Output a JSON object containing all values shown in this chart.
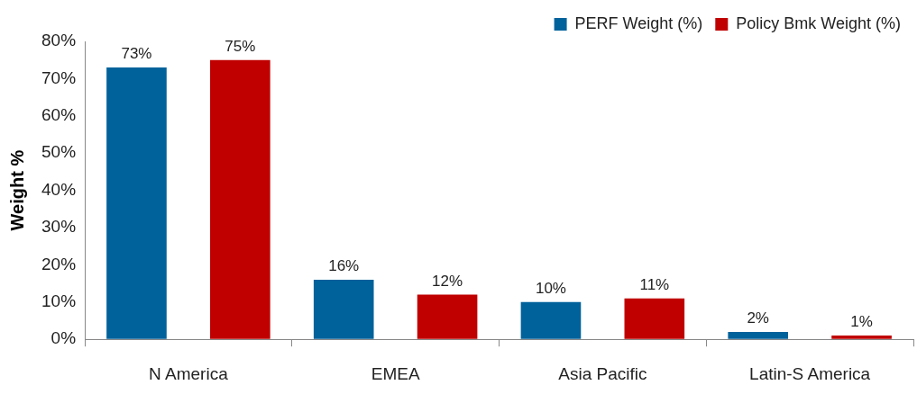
{
  "chart_data": {
    "type": "bar",
    "ylabel": "Weight %",
    "categories": [
      "N America",
      "EMEA",
      "Asia Pacific",
      "Latin-S America"
    ],
    "series": [
      {
        "name": "PERF Weight (%)",
        "color": "#00629b",
        "values": [
          73,
          16,
          10,
          2
        ],
        "value_labels": [
          "73%",
          "16%",
          "10%",
          "2%"
        ]
      },
      {
        "name": "Policy Bmk Weight (%)",
        "color": "#c00000",
        "values": [
          75,
          12,
          11,
          1
        ],
        "value_labels": [
          "75%",
          "12%",
          "11%",
          "1%"
        ]
      }
    ],
    "ylim": [
      0,
      80
    ],
    "yticks": [
      {
        "value": 0,
        "label": "0%"
      },
      {
        "value": 10,
        "label": "10%"
      },
      {
        "value": 20,
        "label": "20%"
      },
      {
        "value": 30,
        "label": "30%"
      },
      {
        "value": 40,
        "label": "40%"
      },
      {
        "value": 50,
        "label": "50%"
      },
      {
        "value": 60,
        "label": "60%"
      },
      {
        "value": 70,
        "label": "70%"
      },
      {
        "value": 80,
        "label": "80%"
      }
    ],
    "grid": false,
    "legend": "top right"
  }
}
